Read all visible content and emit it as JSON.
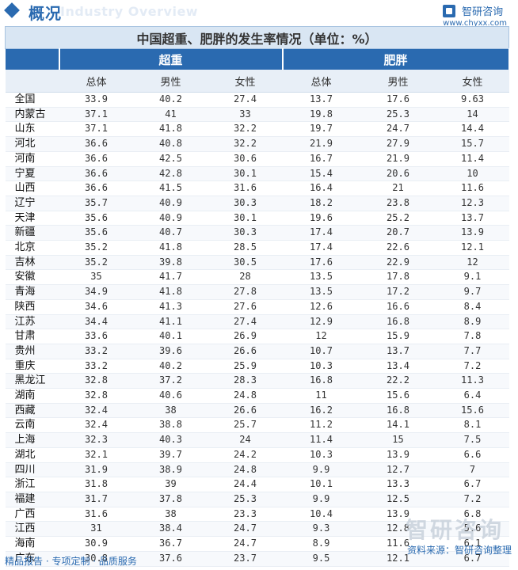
{
  "header": {
    "section_title": "概况",
    "section_subtitle": "Industry Overview",
    "brand_name": "智研咨询",
    "brand_url": "www.chyxx.com"
  },
  "table": {
    "title": "中国超重、肥胖的发生率情况（单位：%）",
    "groups": [
      "超重",
      "肥胖"
    ],
    "subheaders": [
      "总体",
      "男性",
      "女性",
      "总体",
      "男性",
      "女性"
    ],
    "rows": [
      [
        "全国",
        "33.9",
        "40.2",
        "27.4",
        "13.7",
        "17.6",
        "9.63"
      ],
      [
        "内蒙古",
        "37.1",
        "41",
        "33",
        "19.8",
        "25.3",
        "14"
      ],
      [
        "山东",
        "37.1",
        "41.8",
        "32.2",
        "19.7",
        "24.7",
        "14.4"
      ],
      [
        "河北",
        "36.6",
        "40.8",
        "32.2",
        "21.9",
        "27.9",
        "15.7"
      ],
      [
        "河南",
        "36.6",
        "42.5",
        "30.6",
        "16.7",
        "21.9",
        "11.4"
      ],
      [
        "宁夏",
        "36.6",
        "42.8",
        "30.1",
        "15.4",
        "20.6",
        "10"
      ],
      [
        "山西",
        "36.6",
        "41.5",
        "31.6",
        "16.4",
        "21",
        "11.6"
      ],
      [
        "辽宁",
        "35.7",
        "40.9",
        "30.3",
        "18.2",
        "23.8",
        "12.3"
      ],
      [
        "天津",
        "35.6",
        "40.9",
        "30.1",
        "19.6",
        "25.2",
        "13.7"
      ],
      [
        "新疆",
        "35.6",
        "40.7",
        "30.3",
        "17.4",
        "20.7",
        "13.9"
      ],
      [
        "北京",
        "35.2",
        "41.8",
        "28.5",
        "17.4",
        "22.6",
        "12.1"
      ],
      [
        "吉林",
        "35.2",
        "39.8",
        "30.5",
        "17.6",
        "22.9",
        "12"
      ],
      [
        "安徽",
        "35",
        "41.7",
        "28",
        "13.5",
        "17.8",
        "9.1"
      ],
      [
        "青海",
        "34.9",
        "41.8",
        "27.8",
        "13.5",
        "17.2",
        "9.7"
      ],
      [
        "陕西",
        "34.6",
        "41.3",
        "27.6",
        "12.6",
        "16.6",
        "8.4"
      ],
      [
        "江苏",
        "34.4",
        "41.1",
        "27.4",
        "12.9",
        "16.8",
        "8.9"
      ],
      [
        "甘肃",
        "33.6",
        "40.1",
        "26.9",
        "12",
        "15.9",
        "7.8"
      ],
      [
        "贵州",
        "33.2",
        "39.6",
        "26.6",
        "10.7",
        "13.7",
        "7.7"
      ],
      [
        "重庆",
        "33.2",
        "40.2",
        "25.9",
        "10.3",
        "13.4",
        "7.2"
      ],
      [
        "黑龙江",
        "32.8",
        "37.2",
        "28.3",
        "16.8",
        "22.2",
        "11.3"
      ],
      [
        "湖南",
        "32.8",
        "40.6",
        "24.8",
        "11",
        "15.6",
        "6.4"
      ],
      [
        "西藏",
        "32.4",
        "38",
        "26.6",
        "16.2",
        "16.8",
        "15.6"
      ],
      [
        "云南",
        "32.4",
        "38.8",
        "25.7",
        "11.2",
        "14.1",
        "8.1"
      ],
      [
        "上海",
        "32.3",
        "40.3",
        "24",
        "11.4",
        "15",
        "7.5"
      ],
      [
        "湖北",
        "32.1",
        "39.7",
        "24.2",
        "10.3",
        "13.9",
        "6.6"
      ],
      [
        "四川",
        "31.9",
        "38.9",
        "24.8",
        "9.9",
        "12.7",
        "7"
      ],
      [
        "浙江",
        "31.8",
        "39",
        "24.4",
        "10.1",
        "13.3",
        "6.7"
      ],
      [
        "福建",
        "31.7",
        "37.8",
        "25.3",
        "9.9",
        "12.5",
        "7.2"
      ],
      [
        "广西",
        "31.6",
        "38",
        "23.3",
        "10.4",
        "13.9",
        "6.8"
      ],
      [
        "江西",
        "31",
        "38.4",
        "24.7",
        "9.3",
        "12.8",
        "5.6"
      ],
      [
        "海南",
        "30.9",
        "36.7",
        "24.7",
        "8.9",
        "11.6",
        "6.1"
      ],
      [
        "广东",
        "30.8",
        "37.6",
        "23.7",
        "9.5",
        "12.1",
        "6.7"
      ]
    ]
  },
  "footer": {
    "watermark": "智研咨询",
    "tagline": "精品报告 · 专项定制 · 品质服务",
    "source": "资料来源：智研咨询整理"
  },
  "colors": {
    "accent": "#2a6ab0",
    "title_bg": "#d9e6f3",
    "subheader_bg": "#e8eff7"
  }
}
